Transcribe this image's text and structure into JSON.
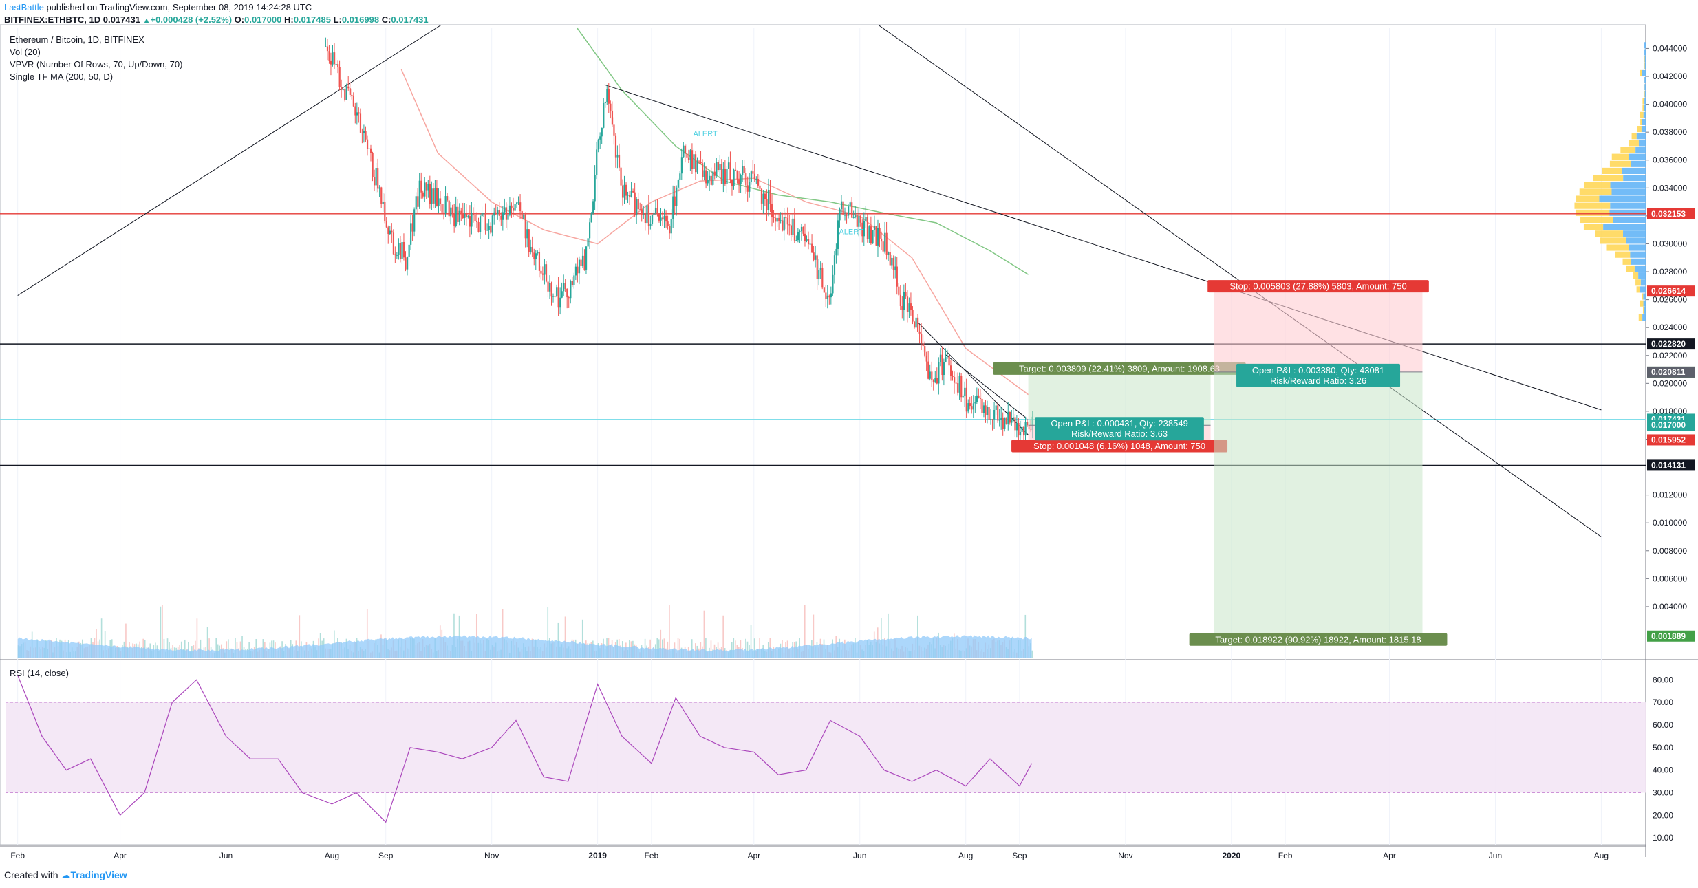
{
  "header": {
    "author": "LastBattle",
    "published": "published on TradingView.com, September 08, 2019 14:24:28 UTC",
    "symbol": "BITFINEX:ETHBTC, 1D",
    "last": "0.017431",
    "change": "+0.000428 (+2.52%)",
    "open_label": "O:",
    "open": "0.017000",
    "high_label": "H:",
    "high": "0.017485",
    "low_label": "L:",
    "low": "0.016998",
    "close_label": "C:",
    "close": "0.017431"
  },
  "legend": [
    "Ethereum / Bitcoin, 1D, BITFINEX",
    "Vol (20)",
    "VPVR (Number Of Rows, 70, Up/Down, 70)",
    "Single TF MA (200, 50, D)"
  ],
  "rsi_label": "RSI (14, close)",
  "footer": {
    "created_with": "Created with",
    "brand": "TradingView"
  },
  "colors": {
    "up": "#26a69a",
    "down": "#ef5350",
    "ma_red": "#f7a6a0",
    "ma_green": "#81c784",
    "hline_red": "#e53935",
    "rsi": "#9c27b0",
    "rsi_band": "#e1bee7",
    "vol": "#90caf9",
    "vpvr_up": "#64b5f6",
    "vpvr_down": "#ffd54f"
  },
  "chart_data": [
    {
      "type": "line",
      "name": "ETHBTC price",
      "x": [
        "Feb",
        "Apr",
        "Jun",
        "Aug",
        "Sep",
        "Nov",
        "2019",
        "Feb",
        "Apr",
        "Jun",
        "Aug",
        "Sep",
        "Nov",
        "2020",
        "Feb",
        "Apr",
        "Jun",
        "Aug"
      ],
      "x_dates": [
        "2018-02-01",
        "2018-04-01",
        "2018-06-01",
        "2018-08-01",
        "2018-09-01",
        "2018-11-01",
        "2019-01-01",
        "2019-02-01",
        "2019-04-01",
        "2019-06-01",
        "2019-08-01",
        "2019-09-01",
        "2019-11-01",
        "2020-01-01",
        "2020-02-01",
        "2020-04-01",
        "2020-06-01",
        "2020-08-01"
      ],
      "price_series": [
        [
          "2018-07-28",
          0.044
        ],
        [
          "2018-08-05",
          0.042
        ],
        [
          "2018-08-15",
          0.039
        ],
        [
          "2018-08-25",
          0.035
        ],
        [
          "2018-09-05",
          0.03
        ],
        [
          "2018-09-12",
          0.029
        ],
        [
          "2018-09-20",
          0.034
        ],
        [
          "2018-10-01",
          0.033
        ],
        [
          "2018-10-15",
          0.0315
        ],
        [
          "2018-11-01",
          0.0316
        ],
        [
          "2018-11-15",
          0.033
        ],
        [
          "2018-11-25",
          0.029
        ],
        [
          "2018-12-10",
          0.026
        ],
        [
          "2018-12-25",
          0.029
        ],
        [
          "2019-01-01",
          0.037
        ],
        [
          "2019-01-05",
          0.041
        ],
        [
          "2019-01-15",
          0.0335
        ],
        [
          "2019-02-01",
          0.032
        ],
        [
          "2019-02-10",
          0.031
        ],
        [
          "2019-02-20",
          0.037
        ],
        [
          "2019-03-01",
          0.035
        ],
        [
          "2019-03-15",
          0.035
        ],
        [
          "2019-04-01",
          0.0345
        ],
        [
          "2019-04-15",
          0.032
        ],
        [
          "2019-05-01",
          0.03
        ],
        [
          "2019-05-15",
          0.026
        ],
        [
          "2019-05-20",
          0.033
        ],
        [
          "2019-06-01",
          0.0315
        ],
        [
          "2019-06-15",
          0.03
        ],
        [
          "2019-06-25",
          0.026
        ],
        [
          "2019-07-05",
          0.024
        ],
        [
          "2019-07-12",
          0.02
        ],
        [
          "2019-07-20",
          0.022
        ],
        [
          "2019-08-01",
          0.0185
        ],
        [
          "2019-08-15",
          0.018
        ],
        [
          "2019-08-25",
          0.0175
        ],
        [
          "2019-09-05",
          0.0163
        ],
        [
          "2019-09-08",
          0.0174
        ]
      ],
      "ylim": [
        0.0003,
        0.0455
      ],
      "price_ticks": [
        "0.044000",
        "0.042000",
        "0.040000",
        "0.038000",
        "0.036000",
        "0.034000",
        "0.032000",
        "0.030000",
        "0.028000",
        "0.026000",
        "0.024000",
        "0.022000",
        "0.020000",
        "0.018000",
        "0.016000",
        "0.012000",
        "0.010000",
        "0.008000",
        "0.006000",
        "0.004000"
      ],
      "price_ticks_values": [
        0.044,
        0.042,
        0.04,
        0.038,
        0.036,
        0.034,
        0.032,
        0.03,
        0.028,
        0.026,
        0.024,
        0.022,
        0.02,
        0.018,
        0.016,
        0.012,
        0.01,
        0.008,
        0.006,
        0.004
      ],
      "axis_badges": [
        {
          "label": "0.032153",
          "value": 0.032153,
          "color": "#e53935"
        },
        {
          "label": "0.026614",
          "value": 0.026614,
          "color": "#e53935"
        },
        {
          "label": "0.022820",
          "value": 0.02282,
          "color": "#131722"
        },
        {
          "label": "0.020809",
          "value": 0.020809,
          "color": "#43a047"
        },
        {
          "label": "0.020811",
          "value": 0.020811,
          "color": "#5d606b"
        },
        {
          "label": "0.017431",
          "value": 0.017431,
          "color": "#26a69a"
        },
        {
          "label": "0.017000",
          "value": 0.017,
          "color": "#26a69a"
        },
        {
          "label": "0.015952",
          "value": 0.015952,
          "color": "#e53935"
        },
        {
          "label": "0.014131",
          "value": 0.014131,
          "color": "#131722"
        },
        {
          "label": "0.001889",
          "value": 0.001889,
          "color": "#43a047"
        }
      ],
      "horizontal_lines": [
        {
          "value": 0.032153,
          "color": "#e53935"
        },
        {
          "value": 0.02282,
          "color": "#131722"
        },
        {
          "value": 0.014131,
          "color": "#131722"
        },
        {
          "value": 0.017431,
          "color": "#80deea"
        }
      ],
      "trendlines": [
        {
          "from": [
            "2018-02-01",
            0.0263
          ],
          "to": [
            "2018-11-01",
            0.048
          ]
        },
        {
          "from": [
            "2019-01-05",
            0.0414
          ],
          "to": [
            "2020-08-01",
            0.0181
          ]
        },
        {
          "from": [
            "2019-04-01",
            0.052
          ],
          "to": [
            "2020-08-01",
            0.009
          ]
        },
        {
          "from": [
            "2019-07-05",
            0.0243
          ],
          "to": [
            "2019-09-06",
            0.0163
          ]
        },
        {
          "from": [
            "2019-07-20",
            0.0221
          ],
          "to": [
            "2019-09-05",
            0.0175
          ]
        }
      ],
      "positions": [
        {
          "entry": 0.017,
          "target": 0.020809,
          "stop": 0.015952,
          "start": "2019-09-06",
          "end": "2019-12-20",
          "target_text": "Target: 0.003809 (22.41%) 3809, Amount: 1908.63",
          "pnl_text": "Open P&L: 0.000431, Qty: 238549",
          "rr_text": "Risk/Reward Ratio: 3.63",
          "stop_text": "Stop: 0.001048 (6.16%) 1048, Amount: 750"
        },
        {
          "entry": 0.020811,
          "target": 0.001889,
          "stop": 0.026614,
          "start": "2019-12-22",
          "end": "2020-04-20",
          "target_text": "Target: 0.018922 (90.92%) 18922, Amount: 1815.18",
          "pnl_text": "Open P&L: 0.003380, Qty: 43081",
          "rr_text": "Risk/Reward Ratio: 3.26",
          "stop_text": "Stop: 0.005803 (27.88%) 5803, Amount: 750"
        }
      ],
      "alerts": [
        "ALERT",
        "ALERT"
      ]
    },
    {
      "type": "line",
      "name": "RSI (14, close)",
      "ylim": [
        7,
        88
      ],
      "ticks": [
        80,
        70,
        60,
        50,
        40,
        30,
        20,
        10
      ],
      "tick_labels": [
        "80.00",
        "70.00",
        "60.00",
        "50.00",
        "40.00",
        "30.00",
        "20.00",
        "10.00"
      ],
      "band": [
        30,
        70
      ],
      "series": [
        [
          "2018-02-01",
          82
        ],
        [
          "2018-02-15",
          55
        ],
        [
          "2018-03-01",
          40
        ],
        [
          "2018-03-15",
          45
        ],
        [
          "2018-04-01",
          20
        ],
        [
          "2018-04-15",
          30
        ],
        [
          "2018-05-01",
          70
        ],
        [
          "2018-05-15",
          80
        ],
        [
          "2018-06-01",
          55
        ],
        [
          "2018-06-15",
          45
        ],
        [
          "2018-07-01",
          45
        ],
        [
          "2018-07-15",
          30
        ],
        [
          "2018-08-01",
          25
        ],
        [
          "2018-08-15",
          30
        ],
        [
          "2018-09-01",
          17
        ],
        [
          "2018-09-15",
          50
        ],
        [
          "2018-10-01",
          48
        ],
        [
          "2018-10-15",
          45
        ],
        [
          "2018-11-01",
          50
        ],
        [
          "2018-11-15",
          62
        ],
        [
          "2018-12-01",
          37
        ],
        [
          "2018-12-15",
          35
        ],
        [
          "2019-01-01",
          78
        ],
        [
          "2019-01-15",
          55
        ],
        [
          "2019-02-01",
          43
        ],
        [
          "2019-02-15",
          72
        ],
        [
          "2019-03-01",
          55
        ],
        [
          "2019-03-15",
          50
        ],
        [
          "2019-04-01",
          48
        ],
        [
          "2019-04-15",
          38
        ],
        [
          "2019-05-01",
          40
        ],
        [
          "2019-05-15",
          62
        ],
        [
          "2019-06-01",
          55
        ],
        [
          "2019-06-15",
          40
        ],
        [
          "2019-07-01",
          35
        ],
        [
          "2019-07-15",
          40
        ],
        [
          "2019-08-01",
          33
        ],
        [
          "2019-08-15",
          45
        ],
        [
          "2019-09-01",
          33
        ],
        [
          "2019-09-08",
          43
        ]
      ]
    }
  ]
}
